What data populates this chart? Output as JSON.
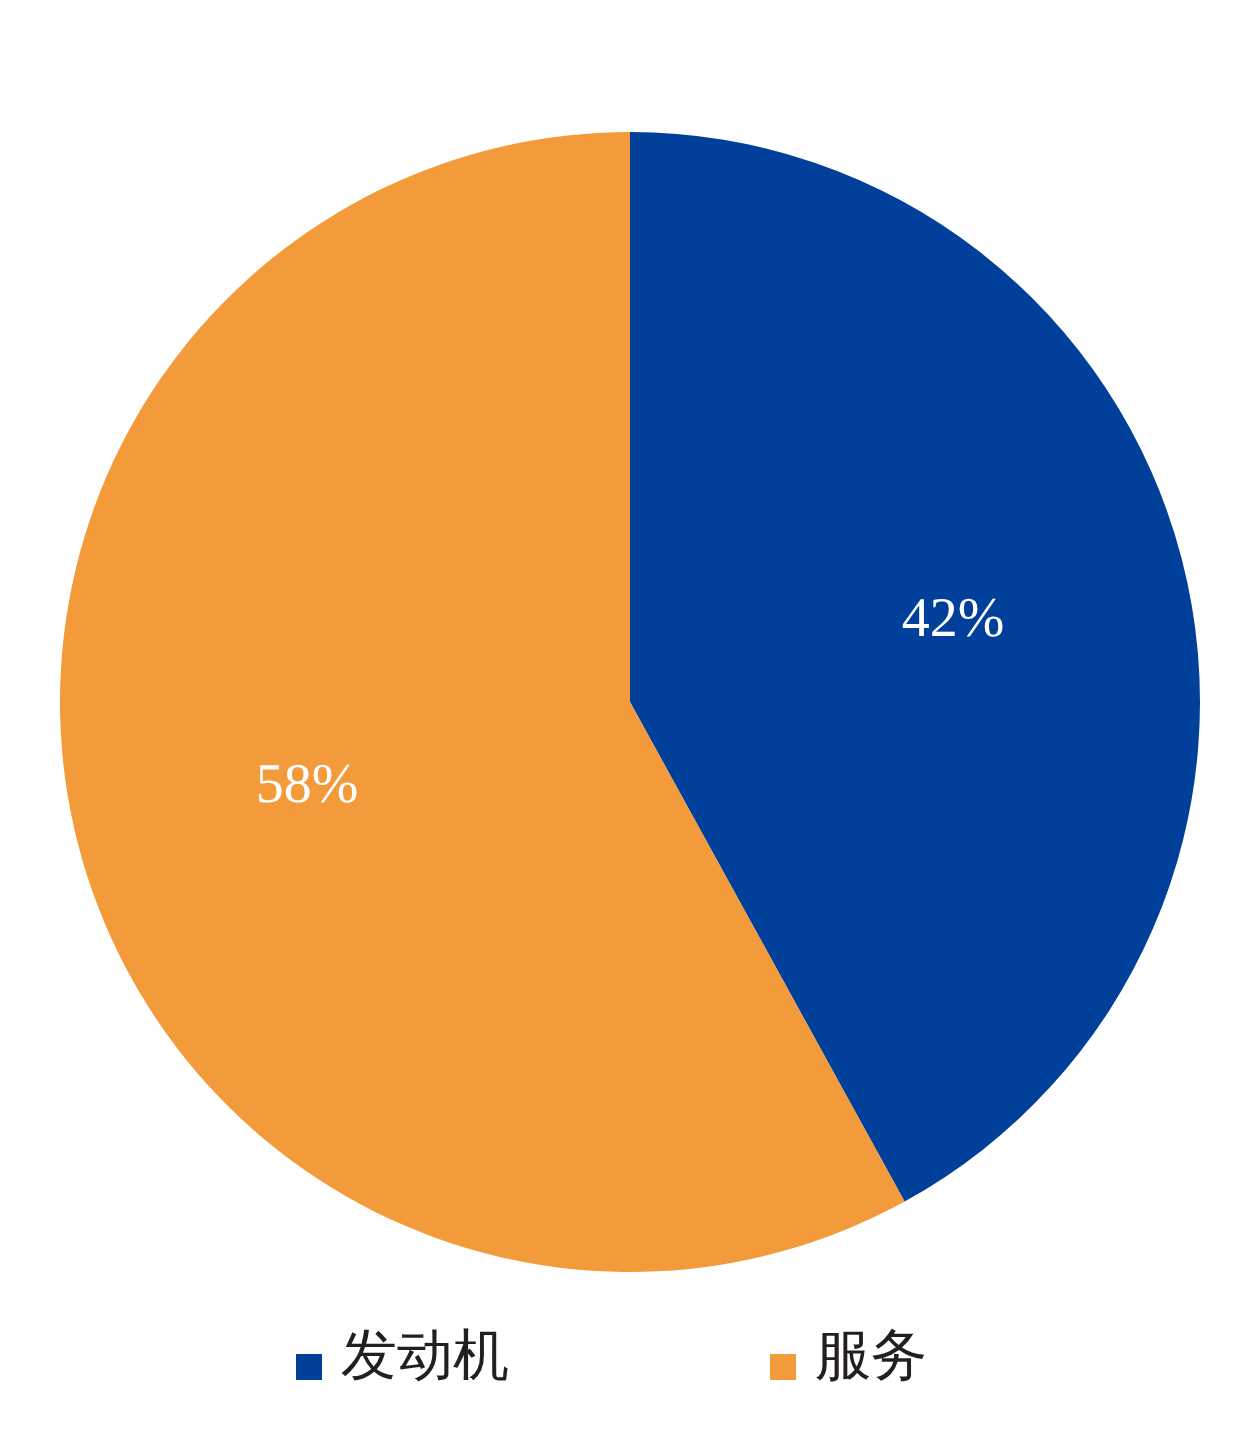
{
  "chart_data": {
    "type": "pie",
    "categories": [
      "发动机",
      "服务"
    ],
    "values": [
      42,
      58
    ],
    "colors": [
      "#00409a",
      "#f39a3a"
    ],
    "value_labels": [
      "42%",
      "58%"
    ],
    "legend": "bottom"
  }
}
